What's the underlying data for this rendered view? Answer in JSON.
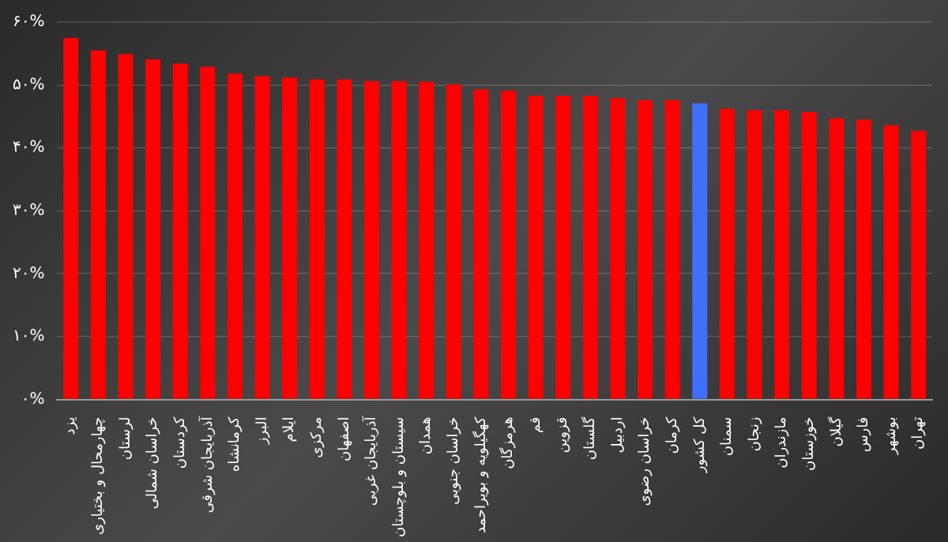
{
  "chart_data": {
    "type": "bar",
    "categories": [
      "یزد",
      "چهارمحال و بختیاری",
      "لرستان",
      "خراسان شمالی",
      "کردستان",
      "آذربایجان شرقی",
      "کرمانشاه",
      "البرز",
      "ایلام",
      "مرکزی",
      "اصفهان",
      "آذربایجان غربی",
      "سیستان و بلوچستان",
      "همدان",
      "خراسان جنوبی",
      "کهگیلویه و بویراحمد",
      "هرمزگان",
      "قم",
      "قزوین",
      "گلستان",
      "اردبیل",
      "خراسان رضوی",
      "کرمان",
      "کل کشور",
      "سمنان",
      "زنجان",
      "مازندران",
      "خوزستان",
      "گیلان",
      "فارس",
      "بوشهر",
      "تهران"
    ],
    "values": [
      57.5,
      55.5,
      54.9,
      54.1,
      53.4,
      52.9,
      51.8,
      51.4,
      51.2,
      50.9,
      50.9,
      50.6,
      50.6,
      50.5,
      50.1,
      49.3,
      49.1,
      48.3,
      48.3,
      48.3,
      47.9,
      47.6,
      47.6,
      47.1,
      46.2,
      46.0,
      46.0,
      45.7,
      44.7,
      44.5,
      43.6,
      42.7
    ],
    "colors": [
      "#ff0000",
      "#ff0000",
      "#ff0000",
      "#ff0000",
      "#ff0000",
      "#ff0000",
      "#ff0000",
      "#ff0000",
      "#ff0000",
      "#ff0000",
      "#ff0000",
      "#ff0000",
      "#ff0000",
      "#ff0000",
      "#ff0000",
      "#ff0000",
      "#ff0000",
      "#ff0000",
      "#ff0000",
      "#ff0000",
      "#ff0000",
      "#ff0000",
      "#ff0000",
      "#3f6fff",
      "#ff0000",
      "#ff0000",
      "#ff0000",
      "#ff0000",
      "#ff0000",
      "#ff0000",
      "#ff0000",
      "#ff0000"
    ],
    "ylim": [
      0,
      60
    ],
    "yticks": [
      {
        "value": 0,
        "label": "۰%"
      },
      {
        "value": 10,
        "label": "۱۰%"
      },
      {
        "value": 20,
        "label": "۲۰%"
      },
      {
        "value": 30,
        "label": "۳۰%"
      },
      {
        "value": 40,
        "label": "۴۰%"
      },
      {
        "value": 50,
        "label": "۵۰%"
      },
      {
        "value": 60,
        "label": "۶۰%"
      }
    ],
    "grid": "y"
  }
}
